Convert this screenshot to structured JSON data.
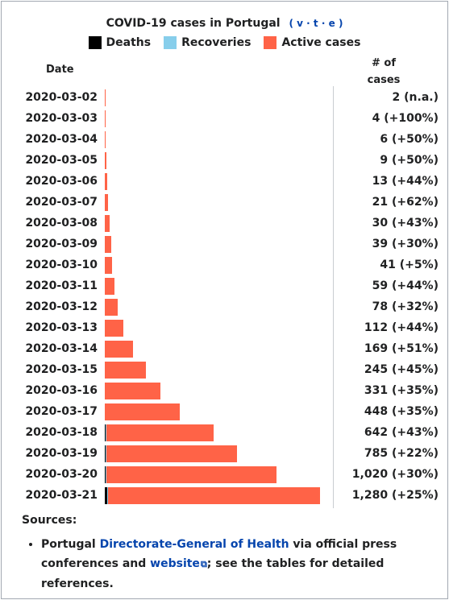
{
  "header": {
    "title": "COVID-19 cases in Portugal",
    "vte_open": "(",
    "vte_v": "v",
    "vte_t": "t",
    "vte_e": "e",
    "vte_close": ")",
    "vte_sep": "·"
  },
  "legend": [
    {
      "label": "Deaths",
      "color": "#000000"
    },
    {
      "label": "Recoveries",
      "color": "#87ceeb"
    },
    {
      "label": "Active cases",
      "color": "#ff6347"
    }
  ],
  "columns": {
    "date": "Date",
    "cases_line1": "# of",
    "cases_line2": "cases"
  },
  "chart_data": {
    "type": "bar",
    "orientation": "horizontal",
    "stacked": true,
    "categories": [
      "2020-03-02",
      "2020-03-03",
      "2020-03-04",
      "2020-03-05",
      "2020-03-06",
      "2020-03-07",
      "2020-03-08",
      "2020-03-09",
      "2020-03-10",
      "2020-03-11",
      "2020-03-12",
      "2020-03-13",
      "2020-03-14",
      "2020-03-15",
      "2020-03-16",
      "2020-03-17",
      "2020-03-18",
      "2020-03-19",
      "2020-03-20",
      "2020-03-21"
    ],
    "series": [
      {
        "name": "Deaths",
        "color": "#000000",
        "values": [
          0,
          0,
          0,
          0,
          0,
          0,
          0,
          0,
          0,
          0,
          0,
          0,
          0,
          0,
          0,
          0,
          1,
          3,
          6,
          12
        ]
      },
      {
        "name": "Recoveries",
        "color": "#87ceeb",
        "values": [
          0,
          0,
          0,
          0,
          0,
          0,
          0,
          0,
          0,
          0,
          0,
          0,
          0,
          0,
          0,
          0,
          2,
          3,
          5,
          5
        ]
      },
      {
        "name": "Active cases",
        "color": "#ff6347",
        "values": [
          2,
          4,
          6,
          9,
          13,
          21,
          30,
          39,
          41,
          59,
          78,
          112,
          169,
          245,
          331,
          448,
          639,
          779,
          1009,
          1263
        ]
      }
    ],
    "totals": [
      2,
      4,
      6,
      9,
      13,
      21,
      30,
      39,
      41,
      59,
      78,
      112,
      169,
      245,
      331,
      448,
      642,
      785,
      1020,
      1280
    ],
    "labels": [
      "2 (n.a.)",
      "4 (+100%)",
      "6 (+50%)",
      "9 (+50%)",
      "13 (+44%)",
      "21 (+62%)",
      "30 (+43%)",
      "39 (+30%)",
      "41 (+5%)",
      "59 (+44%)",
      "78 (+32%)",
      "112 (+44%)",
      "169 (+51%)",
      "245 (+45%)",
      "331 (+35%)",
      "448 (+35%)",
      "642 (+43%)",
      "785 (+22%)",
      "1,020 (+30%)",
      "1,280 (+25%)"
    ],
    "xlim": [
      0,
      1280
    ]
  },
  "sources": {
    "label": "Sources:",
    "text1": "Portugal ",
    "link1": "Directorate-General of Health",
    "text2": " via official press conferences and ",
    "link2": "website",
    "text3": "; see the tables for detailed references."
  }
}
